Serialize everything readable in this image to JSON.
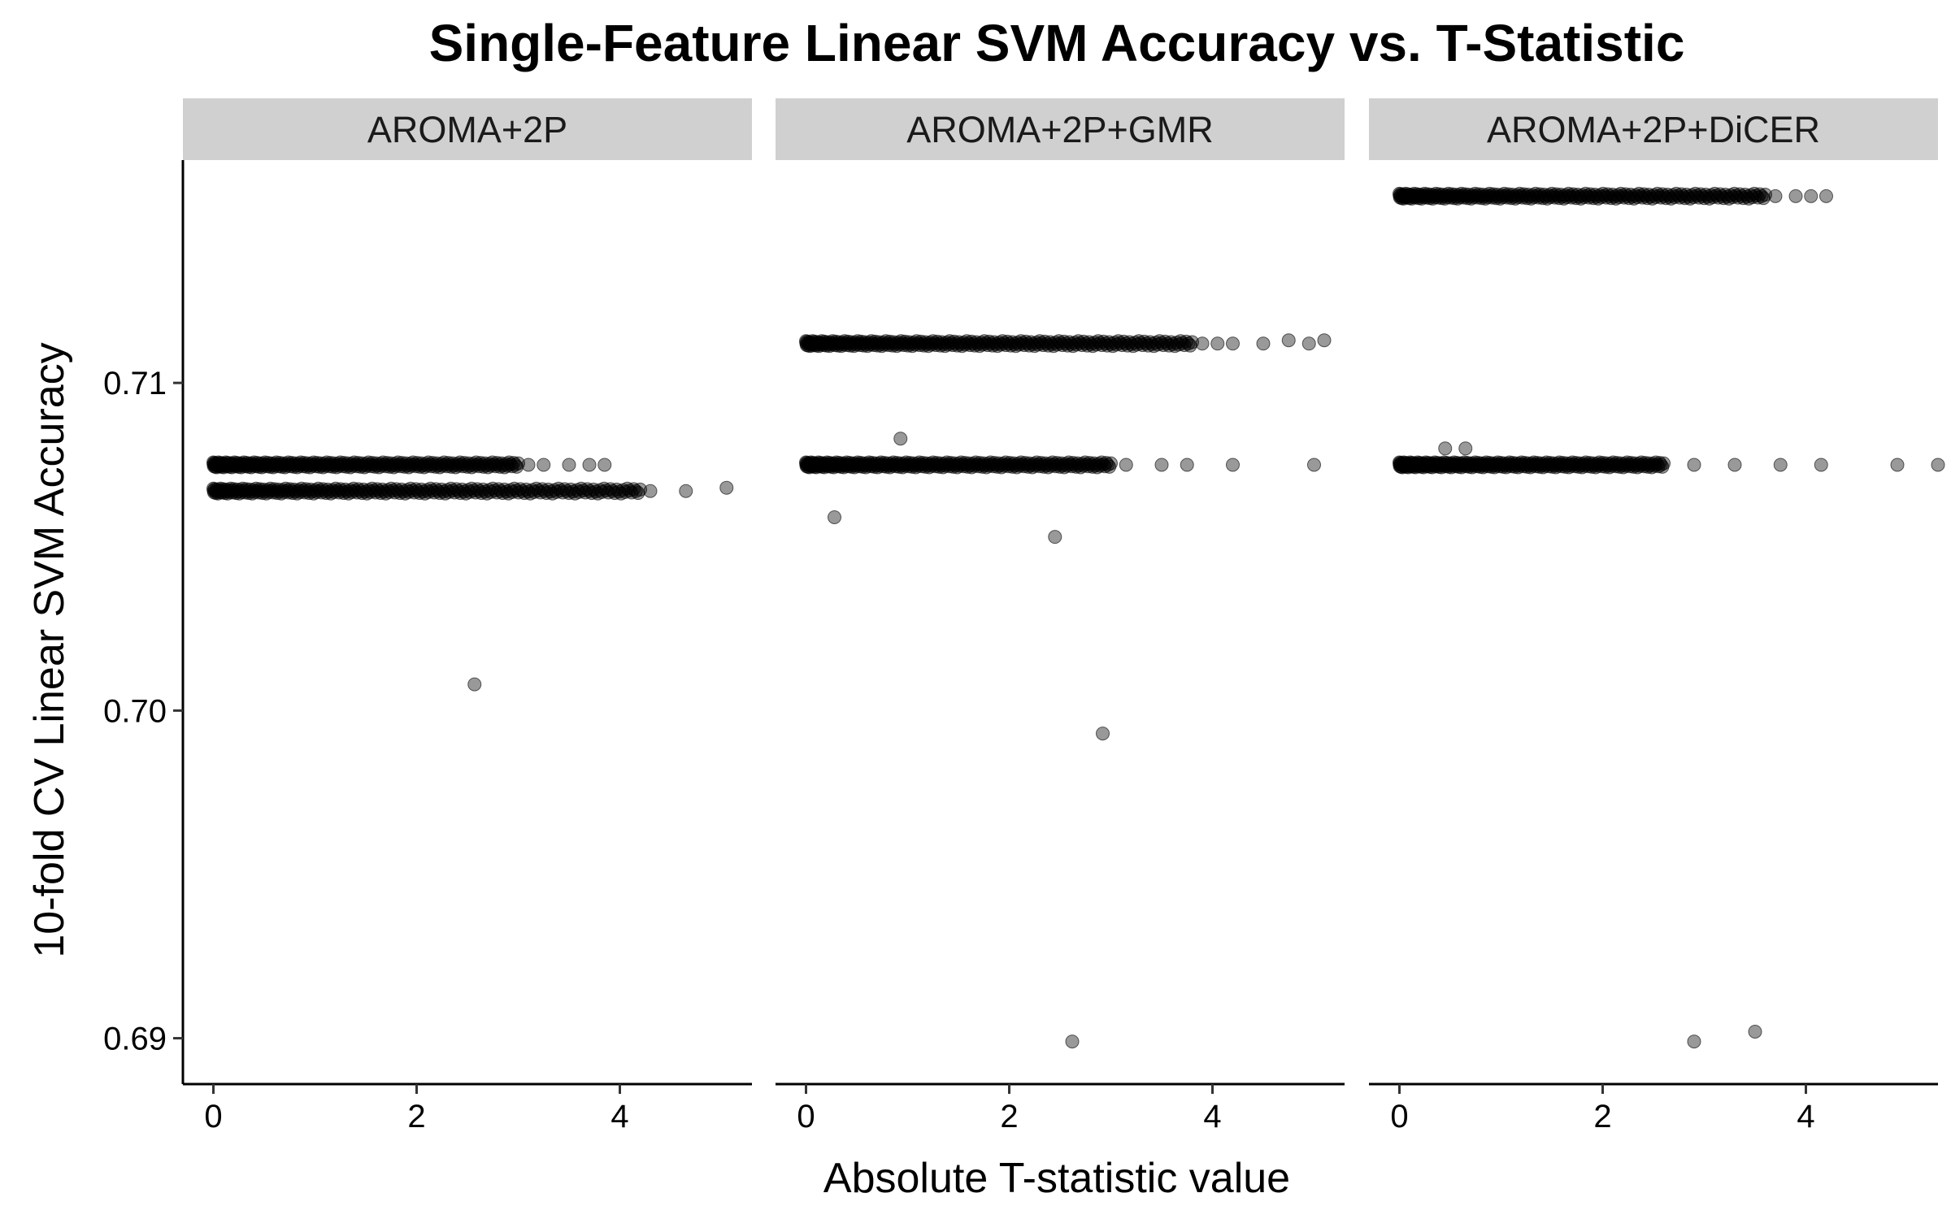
{
  "chart_data": {
    "type": "scatter",
    "title": "Single-Feature Linear SVM Accuracy vs. T-Statistic",
    "xlabel": "Absolute T-statistic value",
    "ylabel": "10-fold CV Linear SVM Accuracy",
    "xlim": [
      -0.3,
      5.3
    ],
    "ylim": [
      0.6886,
      0.7168
    ],
    "x_ticks": [
      0,
      2,
      4
    ],
    "y_ticks": [
      0.69,
      0.7,
      0.71
    ],
    "x_tick_labels": [
      "0",
      "2",
      "4"
    ],
    "y_tick_labels": [
      "0.69",
      "0.70",
      "0.71"
    ],
    "grid": false,
    "point_color": "#000000",
    "point_opacity": 0.4,
    "strip_color": "#d0d0d0",
    "facets": [
      {
        "label": "AROMA+2P",
        "bands": [
          {
            "y": 0.7075,
            "x_range": [
              0,
              3.0
            ]
          },
          {
            "y": 0.7067,
            "x_range": [
              0,
              4.2
            ]
          }
        ],
        "points": [
          {
            "x": 3.1,
            "y": 0.7075
          },
          {
            "x": 3.25,
            "y": 0.7075
          },
          {
            "x": 3.5,
            "y": 0.7075
          },
          {
            "x": 3.7,
            "y": 0.7075
          },
          {
            "x": 3.85,
            "y": 0.7075
          },
          {
            "x": 4.3,
            "y": 0.7067
          },
          {
            "x": 4.65,
            "y": 0.7067
          },
          {
            "x": 5.05,
            "y": 0.7068
          },
          {
            "x": 2.57,
            "y": 0.7008
          }
        ]
      },
      {
        "label": "AROMA+2P+GMR",
        "bands": [
          {
            "y": 0.7112,
            "x_range": [
              0,
              3.8
            ]
          },
          {
            "y": 0.7075,
            "x_range": [
              0,
              3.0
            ]
          }
        ],
        "points": [
          {
            "x": 3.9,
            "y": 0.7112
          },
          {
            "x": 4.05,
            "y": 0.7112
          },
          {
            "x": 4.2,
            "y": 0.7112
          },
          {
            "x": 4.5,
            "y": 0.7112
          },
          {
            "x": 4.75,
            "y": 0.7113
          },
          {
            "x": 4.95,
            "y": 0.7112
          },
          {
            "x": 5.1,
            "y": 0.7113
          },
          {
            "x": 3.15,
            "y": 0.7075
          },
          {
            "x": 3.5,
            "y": 0.7075
          },
          {
            "x": 3.75,
            "y": 0.7075
          },
          {
            "x": 4.2,
            "y": 0.7075
          },
          {
            "x": 5.0,
            "y": 0.7075
          },
          {
            "x": 0.93,
            "y": 0.7083
          },
          {
            "x": 0.28,
            "y": 0.7059
          },
          {
            "x": 2.45,
            "y": 0.7053
          },
          {
            "x": 2.92,
            "y": 0.6993
          },
          {
            "x": 2.62,
            "y": 0.6899
          }
        ]
      },
      {
        "label": "AROMA+2P+DiCER",
        "bands": [
          {
            "y": 0.7157,
            "x_range": [
              0,
              3.6
            ]
          },
          {
            "y": 0.7075,
            "x_range": [
              0,
              2.6
            ]
          }
        ],
        "points": [
          {
            "x": 3.7,
            "y": 0.7157
          },
          {
            "x": 3.9,
            "y": 0.7157
          },
          {
            "x": 4.05,
            "y": 0.7157
          },
          {
            "x": 4.2,
            "y": 0.7157
          },
          {
            "x": 0.45,
            "y": 0.708
          },
          {
            "x": 0.65,
            "y": 0.708
          },
          {
            "x": 2.9,
            "y": 0.7075
          },
          {
            "x": 3.3,
            "y": 0.7075
          },
          {
            "x": 3.75,
            "y": 0.7075
          },
          {
            "x": 4.15,
            "y": 0.7075
          },
          {
            "x": 4.9,
            "y": 0.7075
          },
          {
            "x": 5.3,
            "y": 0.7075
          },
          {
            "x": 2.9,
            "y": 0.6899
          },
          {
            "x": 3.5,
            "y": 0.6902
          }
        ]
      }
    ]
  }
}
